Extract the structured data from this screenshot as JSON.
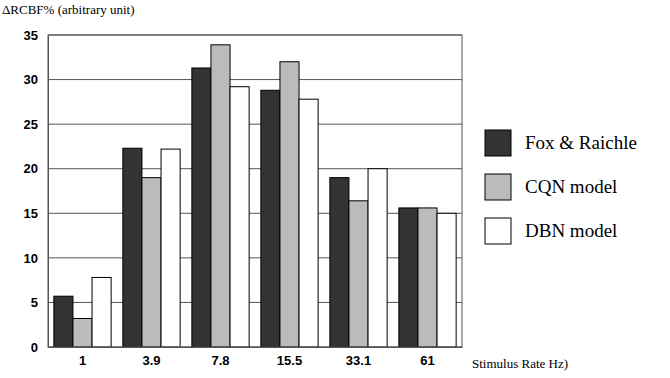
{
  "chart_data": {
    "type": "bar",
    "y_label": "ΔRCBF% (arbitrary unit)",
    "x_label": "Stimulus Rate  Hz)",
    "categories": [
      "1",
      "3.9",
      "7.8",
      "15.5",
      "33.1",
      "61"
    ],
    "series": [
      {
        "name": "Fox & Raichle",
        "color": "#333333",
        "values": [
          5.7,
          22.3,
          31.3,
          28.8,
          19.0,
          15.6
        ]
      },
      {
        "name": "CQN model",
        "color": "#bbbbbb",
        "values": [
          3.2,
          19.0,
          33.9,
          32.0,
          16.4,
          15.6
        ]
      },
      {
        "name": "DBN model",
        "color": "#ffffff",
        "values": [
          7.8,
          22.2,
          29.2,
          27.8,
          20.0,
          15.0
        ]
      }
    ],
    "ylim": [
      0,
      35
    ],
    "yticks": [
      0,
      5,
      10,
      15,
      20,
      25,
      30,
      35
    ],
    "grid": true,
    "legend": "right"
  }
}
